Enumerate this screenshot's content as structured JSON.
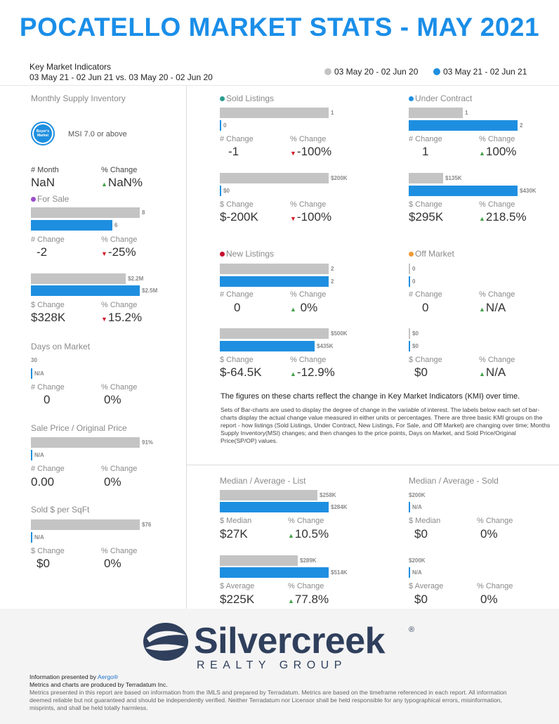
{
  "title": "POCATELLO MARKET STATS - MAY 2021",
  "kmi": {
    "heading": "Key Market Indicators",
    "range": "03 May 21 - 02 Jun 21 vs. 03 May 20 - 02 Jun 20"
  },
  "legend": {
    "prior": "03 May 20 - 02 Jun 20",
    "current": "03 May 21 - 02 Jun 21"
  },
  "colors": {
    "title": "#1a8ee8",
    "current": "#1e8fe0",
    "prior": "#c4c4c4",
    "up": "#43a047",
    "down": "#d21a2a",
    "sold": "#2a9d8f",
    "under_contract": "#1e8fe0",
    "new_listings": "#c8102e",
    "off_market": "#f09a36",
    "for_sale": "#9c4dcc"
  },
  "msi": {
    "title": "Monthly Supply Inventory",
    "badge_line1": "Buyer's",
    "badge_line2": "Market",
    "badge_icon": "buyers-market-badge-icon",
    "caption": "MSI 7.0 or above",
    "num_label": "# Month",
    "num_value": "NaN",
    "pct_label": "% Change",
    "pct_value": "NaN%"
  },
  "for_sale": {
    "title": "For Sale",
    "count": {
      "prior_label": "8",
      "current_label": "6",
      "prior": 8,
      "current": 6,
      "chg_label": "# Change",
      "chg_value": "-2",
      "pct_label": "% Change",
      "pct_value": "-25%"
    },
    "dollar": {
      "prior_label": "$2.2M",
      "current_label": "$2.5M",
      "prior": 2.2,
      "current": 2.5,
      "chg_label": "$ Change",
      "chg_value": "$328K",
      "pct_label": "% Change",
      "pct_value": "15.2%"
    }
  },
  "dom": {
    "title": "Days on Market",
    "prior_label": "30",
    "current_label": "N/A",
    "chg_label": "# Change",
    "chg_value": "0",
    "pct_label": "% Change",
    "pct_value": "0%"
  },
  "sp_op": {
    "title": "Sale Price / Original Price",
    "prior_label": "91%",
    "current_label": "N/A",
    "chg_label": "# Change",
    "chg_value": "0.00",
    "pct_label": "% Change",
    "pct_value": "0%"
  },
  "sqft": {
    "title": "Sold $ per SqFt",
    "prior_label": "$76",
    "current_label": "N/A",
    "chg_label": "$ Change",
    "chg_value": "$0",
    "pct_label": "% Change",
    "pct_value": "0%"
  },
  "sold": {
    "title": "Sold Listings",
    "count": {
      "prior_label": "1",
      "current_label": "0",
      "chg_label": "# Change",
      "chg_value": "-1",
      "pct_label": "% Change",
      "pct_value": "-100%"
    },
    "dollar": {
      "prior_label": "$200K",
      "current_label": "$0",
      "chg_label": "$ Change",
      "chg_value": "$-200K",
      "pct_label": "% Change",
      "pct_value": "-100%"
    }
  },
  "under_contract": {
    "title": "Under Contract",
    "count": {
      "prior_label": "1",
      "current_label": "2",
      "chg_label": "# Change",
      "chg_value": "1",
      "pct_label": "% Change",
      "pct_value": "100%"
    },
    "dollar": {
      "prior_label": "$135K",
      "current_label": "$430K",
      "chg_label": "$ Change",
      "chg_value": "$295K",
      "pct_label": "% Change",
      "pct_value": "218.5%"
    }
  },
  "new_listings": {
    "title": "New Listings",
    "count": {
      "prior_label": "2",
      "current_label": "2",
      "chg_label": "# Change",
      "chg_value": "0",
      "pct_label": "% Change",
      "pct_value": "0%"
    },
    "dollar": {
      "prior_label": "$500K",
      "current_label": "$435K",
      "chg_label": "$ Change",
      "chg_value": "$-64.5K",
      "pct_label": "% Change",
      "pct_value": "-12.9%"
    }
  },
  "off_market": {
    "title": "Off Market",
    "count": {
      "prior_label": "0",
      "current_label": "0",
      "chg_label": "# Change",
      "chg_value": "0",
      "pct_label": "% Change",
      "pct_value": "N/A"
    },
    "dollar": {
      "prior_label": "$0",
      "current_label": "$0",
      "chg_label": "$ Change",
      "chg_value": "$0",
      "pct_label": "% Change",
      "pct_value": "N/A"
    }
  },
  "notes": {
    "lead": "The figures on these charts reflect the change in Key Market Indicators (KMI) over time.",
    "body": "Sets of Bar-charts are used to display the degree of change in the variable of interest. The labels below each set of bar-charts display the actual change value measured in either units or percentages. There are three basic KMI groups on the report - how listings (Sold Listings, Under Contract, New Listings, For Sale, and Off Market) are changing over time; Months Supply Inventory(MSI) changes; and then changes to the price points, Days on Market, and Sold Price/Original Price(SP/OP) values."
  },
  "list_price": {
    "title": "Median / Average - List",
    "median": {
      "prior_label": "$258K",
      "current_label": "$284K",
      "chg_label": "$ Median",
      "chg_value": "$27K",
      "pct_label": "% Change",
      "pct_value": "10.5%"
    },
    "average": {
      "prior_label": "$289K",
      "current_label": "$514K",
      "chg_label": "$ Average",
      "chg_value": "$225K",
      "pct_label": "% Change",
      "pct_value": "77.8%"
    }
  },
  "sold_price": {
    "title": "Median / Average - Sold",
    "median": {
      "prior_label": "$200K",
      "current_label": "N/A",
      "chg_label": "$ Median",
      "chg_value": "$0",
      "pct_label": "% Change",
      "pct_value": "0%"
    },
    "average": {
      "prior_label": "$200K",
      "current_label": "N/A",
      "chg_label": "$ Average",
      "chg_value": "$0",
      "pct_label": "% Change",
      "pct_value": "0%"
    }
  },
  "footer": {
    "logo_icon": "silvercreek-s-logo-icon",
    "logo_name": "Silvercreek",
    "logo_reg": "®",
    "logo_sub": "REALTY GROUP",
    "presented_prefix": "Information presented by ",
    "presented_link": "Aergo®",
    "produced": "Metrics and charts are produced by Terradatum Inc.",
    "disclaimer": "Metrics presented in this report are based on information from the IMLS and prepared by Terradatum. Metrics are based on the timeframe referenced in each report. All information deemed reliable but not guaranteed and should be independently verified. Neither Terradatum nor Licensor shall be held responsible for any typographical errors, misinformation, misprints, and shall be held totally harmless."
  }
}
